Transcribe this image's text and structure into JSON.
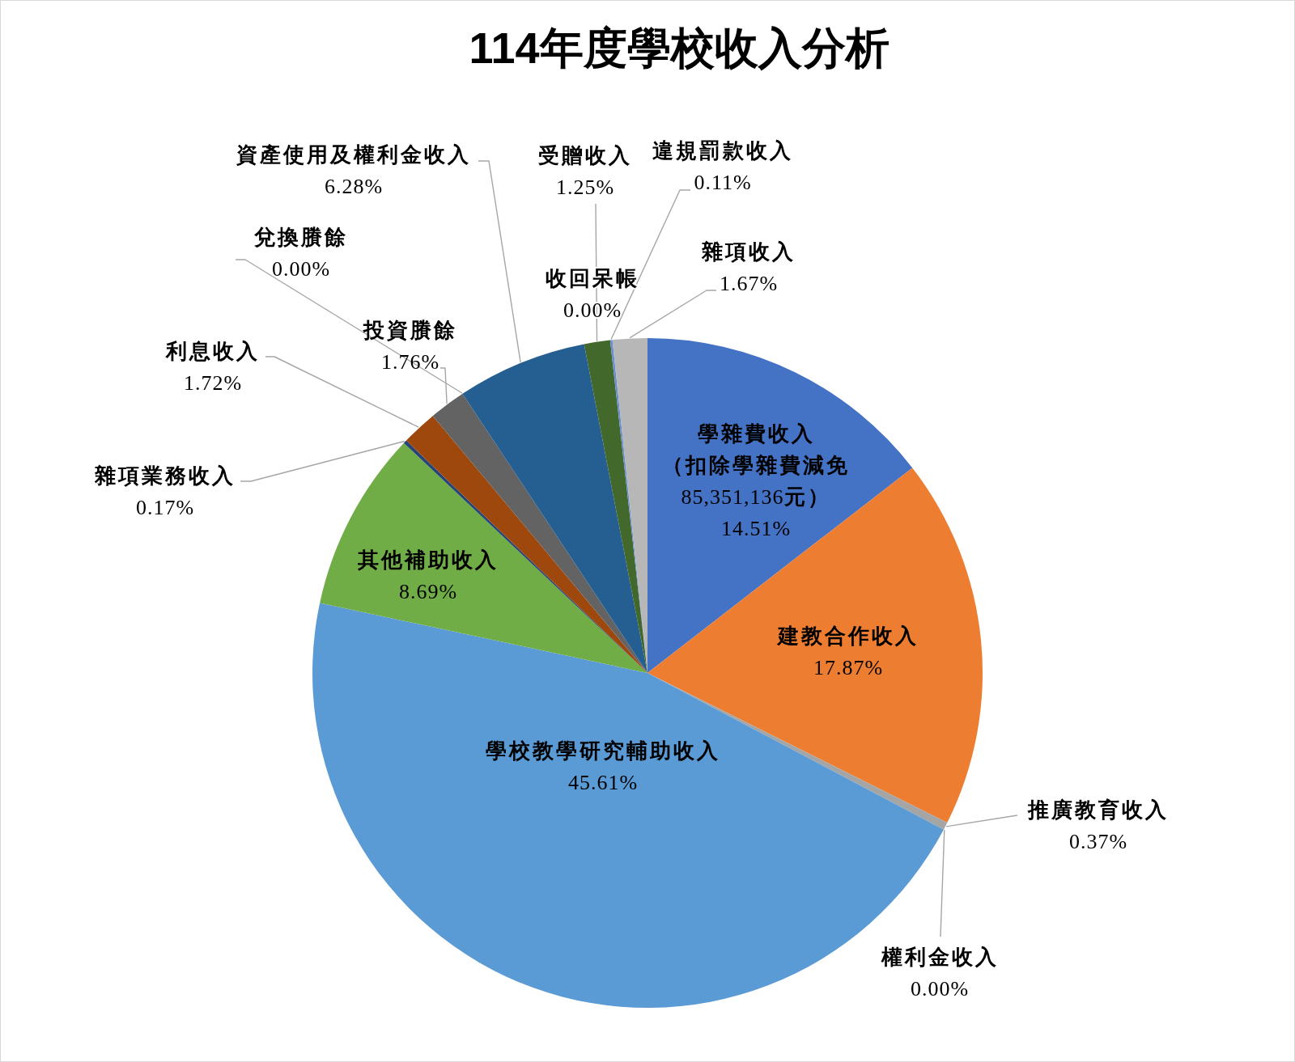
{
  "chart_data": {
    "type": "pie",
    "title": "114年度學校收入分析",
    "categories": [
      "學雜費收入（扣除學雜費減免85,351,136元）",
      "建教合作收入",
      "推廣教育收入",
      "權利金收入",
      "學校教學研究輔助收入",
      "其他補助收入",
      "雜項業務收入",
      "利息收入",
      "投資賸餘",
      "兌換賸餘",
      "資產使用及權利金收入",
      "受贈收入",
      "收回呆帳",
      "違規罰款收入",
      "雜項收入"
    ],
    "values": [
      14.51,
      17.87,
      0.37,
      0,
      45.61,
      8.69,
      0.17,
      1.72,
      1.76,
      0,
      6.28,
      1.25,
      0,
      0.11,
      1.67
    ],
    "colors": [
      "#4472c4",
      "#ed7d31",
      "#a5a5a5",
      null,
      "#5b9bd5",
      "#70ad47",
      "#264478",
      "#9e480e",
      "#636363",
      null,
      "#255e91",
      "#43682b",
      null,
      "#698ed0",
      "#b7b7b7"
    ],
    "value_labels": [
      "14.51%",
      "17.87%",
      "0.37%",
      "0.00%",
      "45.61%",
      "8.69%",
      "0.17%",
      "1.72%",
      "1.76%",
      "0.00%",
      "6.28%",
      "1.25%",
      "0.00%",
      "0.11%",
      "1.67%"
    ]
  }
}
